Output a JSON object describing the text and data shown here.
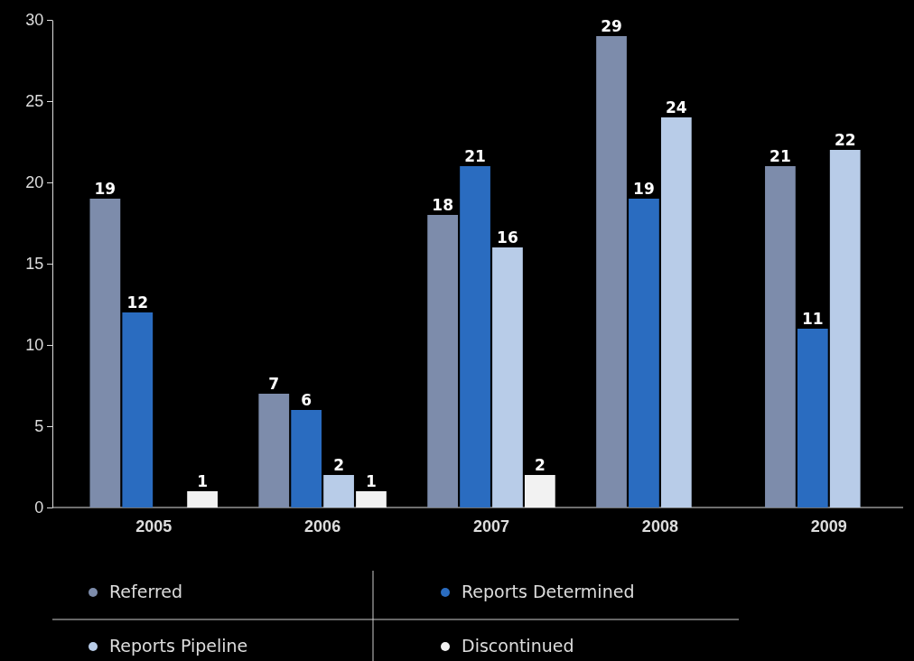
{
  "chart_data": {
    "type": "bar",
    "categories": [
      "2005",
      "2006",
      "2007",
      "2008",
      "2009"
    ],
    "series": [
      {
        "name": "Referred",
        "color": "#7d8cab",
        "values": [
          19,
          7,
          18,
          29,
          21
        ]
      },
      {
        "name": "Reports Determined",
        "color": "#2a6cc0",
        "values": [
          12,
          6,
          21,
          19,
          11
        ]
      },
      {
        "name": "Reports Pipeline",
        "color": "#b8cce8",
        "values": [
          null,
          2,
          16,
          24,
          22
        ]
      },
      {
        "name": "Discontinued",
        "color": "#f2f2f2",
        "values": [
          1,
          1,
          2,
          null,
          null
        ]
      }
    ],
    "ylim": [
      0,
      30
    ],
    "yticks": [
      0,
      5,
      10,
      15,
      20,
      25,
      30
    ],
    "data_labels": true,
    "legend": "bottom",
    "grid": false
  }
}
